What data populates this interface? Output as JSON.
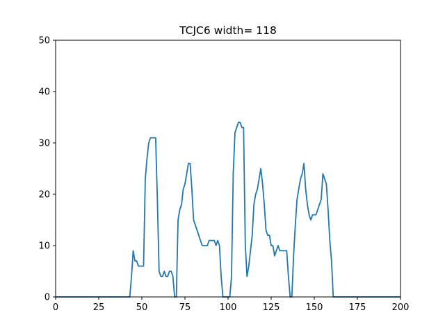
{
  "chart_data": {
    "type": "line",
    "title": "TCJC6 width= 118",
    "xlim": [
      0,
      200
    ],
    "ylim": [
      0,
      50
    ],
    "xticks": [
      0,
      25,
      50,
      75,
      100,
      125,
      150,
      175,
      200
    ],
    "yticks": [
      0,
      10,
      20,
      30,
      40,
      50
    ],
    "grid": false,
    "line_color": "#1f77b4",
    "series": [
      {
        "x": [
          0,
          43,
          44,
          45,
          46,
          47,
          48,
          49,
          50,
          51,
          52,
          53,
          54,
          55,
          56,
          57,
          58,
          59,
          60,
          61,
          62,
          63,
          64,
          65,
          66,
          67,
          68,
          69,
          70,
          71,
          72,
          73,
          74,
          75,
          76,
          77,
          78,
          79,
          80,
          81,
          82,
          83,
          84,
          85,
          86,
          87,
          88,
          89,
          90,
          91,
          92,
          93,
          94,
          95,
          96,
          97,
          98,
          99,
          100,
          101,
          102,
          103,
          104,
          105,
          106,
          107,
          108,
          109,
          110,
          111,
          112,
          113,
          114,
          115,
          116,
          117,
          118,
          119,
          120,
          121,
          122,
          123,
          124,
          125,
          126,
          127,
          128,
          129,
          130,
          131,
          132,
          133,
          134,
          135,
          136,
          137,
          138,
          139,
          140,
          141,
          142,
          143,
          144,
          145,
          146,
          147,
          148,
          149,
          150,
          151,
          152,
          153,
          154,
          155,
          156,
          157,
          158,
          159,
          160,
          161,
          200
        ],
        "y": [
          0,
          0,
          4,
          9,
          7,
          7,
          6,
          6,
          6,
          6,
          23,
          27,
          30,
          31,
          31,
          31,
          31,
          19,
          5,
          4,
          4,
          5,
          4,
          4,
          5,
          5,
          4,
          0,
          0,
          15,
          17,
          18,
          21,
          22,
          24,
          26,
          26,
          21,
          15,
          14,
          13,
          12,
          11,
          10,
          10,
          10,
          10,
          11,
          11,
          11,
          11,
          10,
          11,
          10,
          4,
          0,
          0,
          0,
          0,
          0,
          4,
          24,
          32,
          33,
          34,
          34,
          33,
          33,
          10,
          4,
          6,
          9,
          12,
          18,
          20,
          21,
          23,
          25,
          22,
          18,
          13,
          12,
          12,
          10,
          10,
          8,
          9,
          10,
          9,
          9,
          9,
          9,
          9,
          4,
          0,
          0,
          8,
          14,
          19,
          21,
          23,
          24,
          26,
          21,
          18,
          16,
          15,
          16,
          16,
          16,
          17,
          18,
          19,
          24,
          23,
          22,
          17,
          11,
          7,
          0,
          0
        ]
      }
    ]
  }
}
